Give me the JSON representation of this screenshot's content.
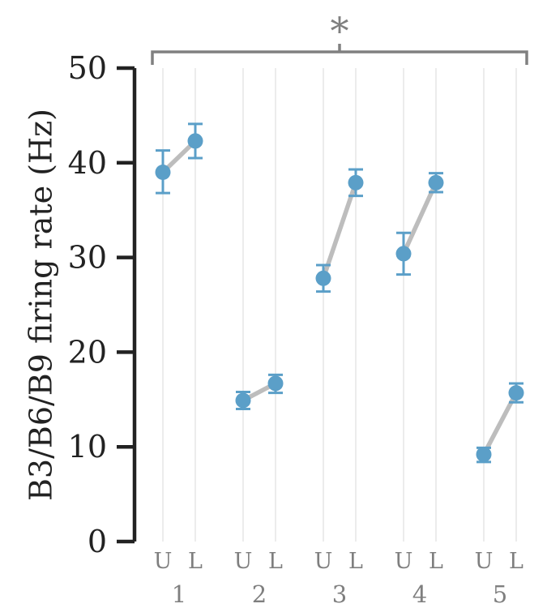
{
  "chart_data": {
    "type": "scatter",
    "title": "",
    "ylabel": "B3/B6/B9 firing rate (Hz)",
    "ylim": [
      0,
      50
    ],
    "yticks": [
      0,
      10,
      20,
      30,
      40,
      50
    ],
    "condition_labels": [
      "U",
      "L"
    ],
    "groups": [
      {
        "label": "1",
        "U": {
          "mean": 39.0,
          "lo": 36.8,
          "hi": 41.3
        },
        "L": {
          "mean": 42.3,
          "lo": 40.5,
          "hi": 44.1
        }
      },
      {
        "label": "2",
        "U": {
          "mean": 14.9,
          "lo": 14.0,
          "hi": 15.8
        },
        "L": {
          "mean": 16.7,
          "lo": 15.7,
          "hi": 17.6
        }
      },
      {
        "label": "3",
        "U": {
          "mean": 27.8,
          "lo": 26.4,
          "hi": 29.2
        },
        "L": {
          "mean": 37.9,
          "lo": 36.5,
          "hi": 39.3
        }
      },
      {
        "label": "4",
        "U": {
          "mean": 30.4,
          "lo": 28.2,
          "hi": 32.6
        },
        "L": {
          "mean": 37.9,
          "lo": 36.9,
          "hi": 38.9
        }
      },
      {
        "label": "5",
        "U": {
          "mean": 9.2,
          "lo": 8.4,
          "hi": 9.9
        },
        "L": {
          "mean": 15.7,
          "lo": 14.7,
          "hi": 16.7
        }
      }
    ],
    "significance": {
      "label": "*",
      "from_group": 0,
      "to_group": 4
    },
    "colors": {
      "point": "#5b9fc8",
      "connector": "#bdbdbd",
      "grid": "#e6e6e6",
      "axis": "#222222",
      "bracket": "#808080"
    },
    "grid": true,
    "legend": "none"
  }
}
